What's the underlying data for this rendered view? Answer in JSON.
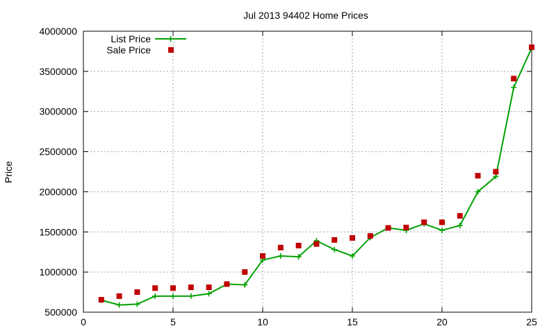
{
  "chart_data": {
    "type": "line",
    "title": "Jul 2013 94402 Home Prices",
    "xlabel": "",
    "ylabel": "Price",
    "xlim": [
      0,
      25
    ],
    "ylim": [
      500000,
      4000000
    ],
    "xticks": [
      0,
      5,
      10,
      15,
      20,
      25
    ],
    "yticks": [
      500000,
      1000000,
      1500000,
      2000000,
      2500000,
      3000000,
      3500000,
      4000000
    ],
    "grid": true,
    "legend_position": "top-left",
    "series": [
      {
        "name": "List Price",
        "style": "line-with-plus-markers",
        "color": "#00a000",
        "x": [
          1,
          2,
          3,
          4,
          5,
          6,
          7,
          8,
          9,
          10,
          11,
          12,
          13,
          14,
          15,
          16,
          17,
          18,
          19,
          20,
          21,
          22,
          23,
          24,
          25
        ],
        "values": [
          650000,
          590000,
          600000,
          700000,
          700000,
          700000,
          730000,
          850000,
          840000,
          1150000,
          1200000,
          1190000,
          1390000,
          1280000,
          1200000,
          1430000,
          1550000,
          1520000,
          1600000,
          1520000,
          1580000,
          2000000,
          2190000,
          3300000,
          3790000
        ]
      },
      {
        "name": "Sale Price",
        "style": "square-markers",
        "color": "#c00000",
        "x": [
          1,
          2,
          3,
          4,
          5,
          6,
          7,
          8,
          9,
          10,
          11,
          12,
          13,
          14,
          15,
          16,
          17,
          18,
          19,
          20,
          21,
          22,
          23,
          24,
          25
        ],
        "values": [
          655000,
          700000,
          750000,
          800000,
          800000,
          810000,
          810000,
          850000,
          1000000,
          1200000,
          1305000,
          1330000,
          1350000,
          1400000,
          1425000,
          1450000,
          1550000,
          1555000,
          1620000,
          1620000,
          1700000,
          2200000,
          2250000,
          3410000,
          3800000
        ]
      }
    ]
  }
}
